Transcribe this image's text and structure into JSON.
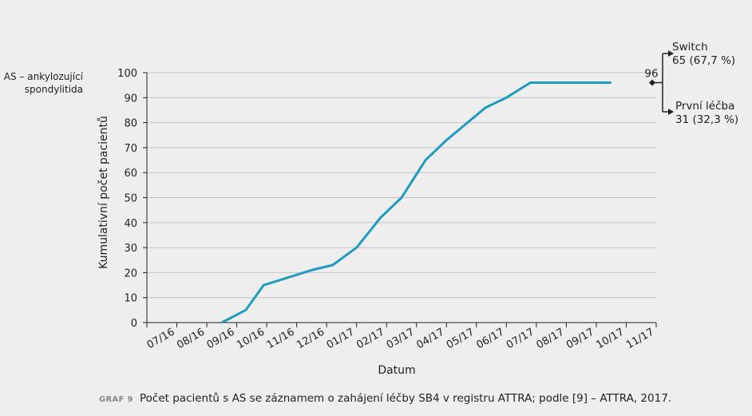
{
  "side_label": {
    "line1": "AS – ankylozující",
    "line2": "spondylitida"
  },
  "caption": {
    "code": "GRAF 9",
    "text": "Počet pacientů s AS se záznamem o zahájení léčby SB4 v registru ATTRA; podle [9] – ATTRA, 2017."
  },
  "chart_data": {
    "type": "line",
    "xlabel": "Datum",
    "ylabel": "Kumulativní počet pacientů",
    "ylim": [
      0,
      100
    ],
    "yticks": [
      0,
      10,
      20,
      30,
      40,
      50,
      60,
      70,
      80,
      90,
      100
    ],
    "categories": [
      "07/16",
      "08/16",
      "09/16",
      "10/16",
      "11/16",
      "12/16",
      "01/17",
      "02/17",
      "03/17",
      "04/17",
      "05/17",
      "06/17",
      "07/17",
      "08/17",
      "09/17",
      "10/17",
      "11/17"
    ],
    "grid": true,
    "line_color": "#1e9bbf",
    "series": [
      {
        "x": [
          2.5,
          3.3,
          3.9,
          5.5,
          6.2,
          7.0,
          7.8,
          8.5,
          9.3,
          10.0,
          10.6,
          11.3,
          12.0,
          12.8,
          13.6,
          14.5,
          15.5
        ],
        "y": [
          0,
          5,
          15,
          21,
          23,
          30,
          42,
          50,
          65,
          73,
          79,
          86,
          90,
          96,
          96,
          96,
          96
        ]
      }
    ],
    "annotations": {
      "total": "96",
      "switch": {
        "label": "Switch",
        "value": "65 (67,7 %)"
      },
      "first": {
        "label": "První léčba",
        "value": "31 (32,3 %)"
      }
    }
  }
}
